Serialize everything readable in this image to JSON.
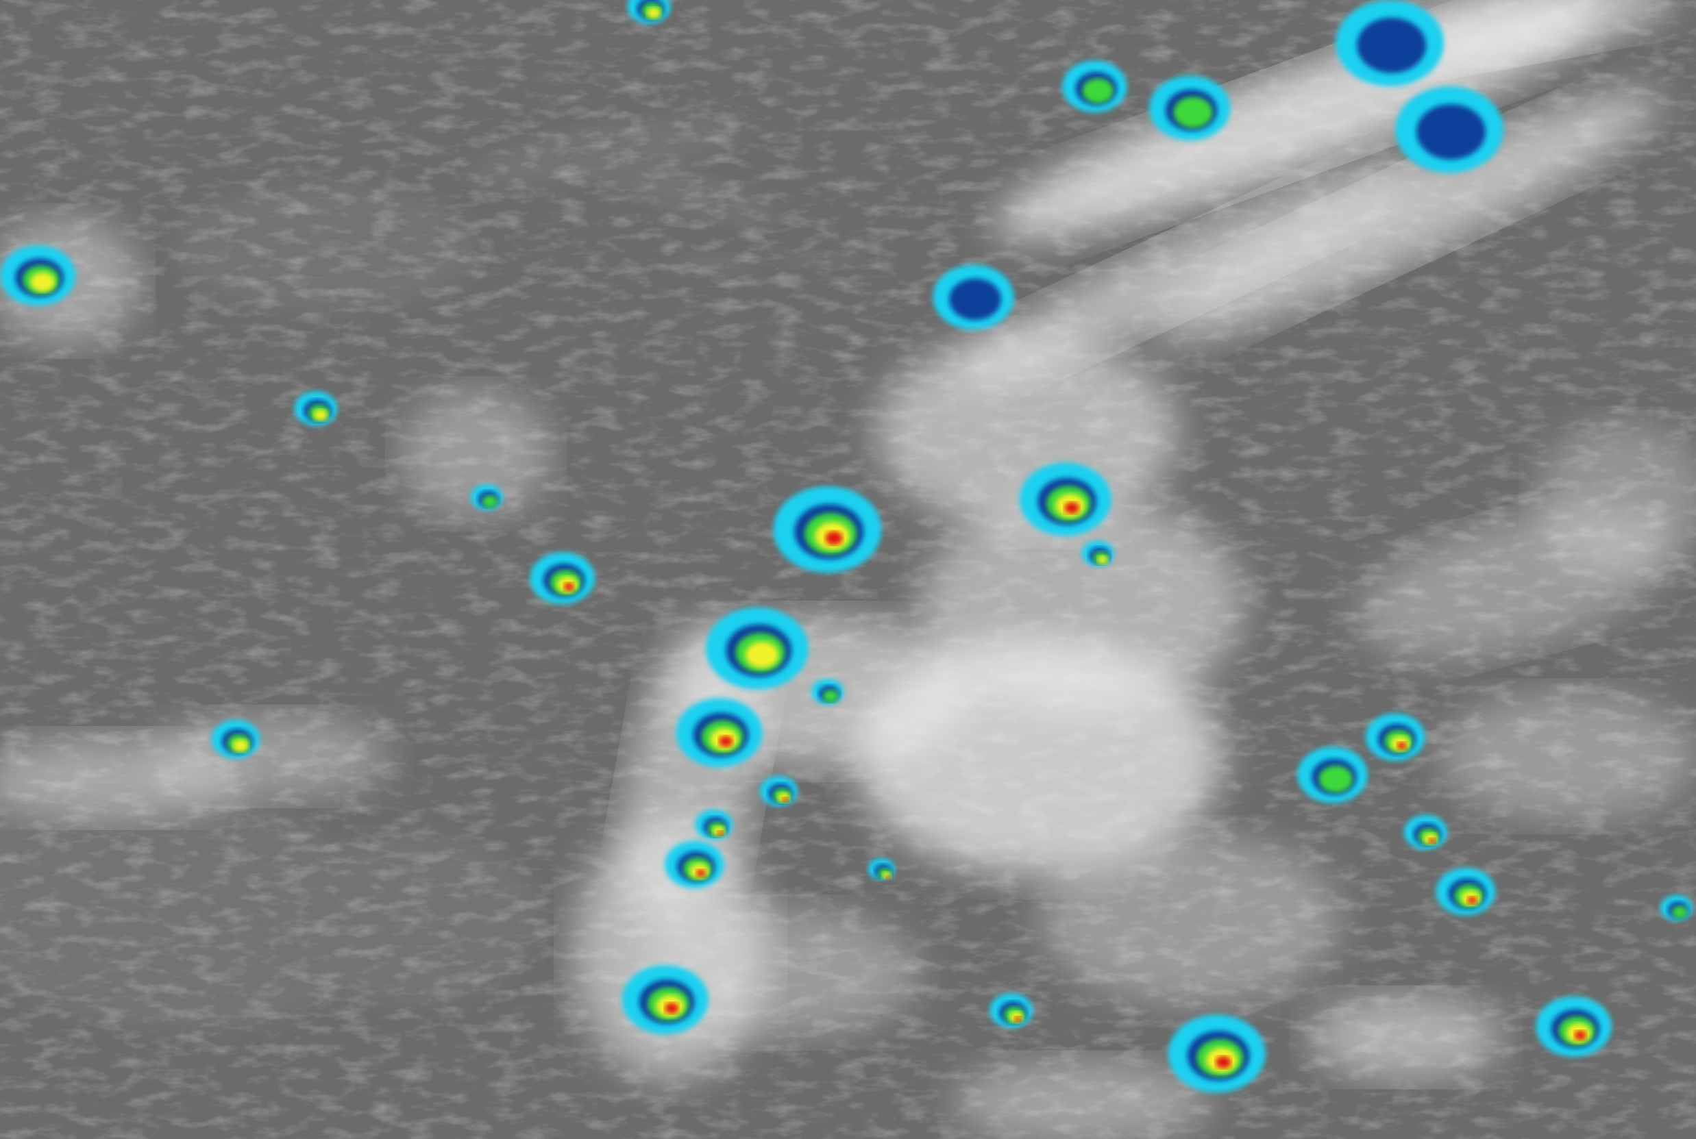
{
  "image": {
    "kind": "infrared satellite imagery",
    "colors": {
      "background_gray": "#6b6b6b",
      "land_gray": "#737373",
      "cloud_white": "#f2f2f2",
      "scale_cyan": "#1fd0f0",
      "scale_blue": "#0a3f9a",
      "scale_green": "#3cd83a",
      "scale_yellow": "#f2f22a",
      "scale_red": "#e0140f",
      "scale_dark": "#3a0505"
    }
  }
}
